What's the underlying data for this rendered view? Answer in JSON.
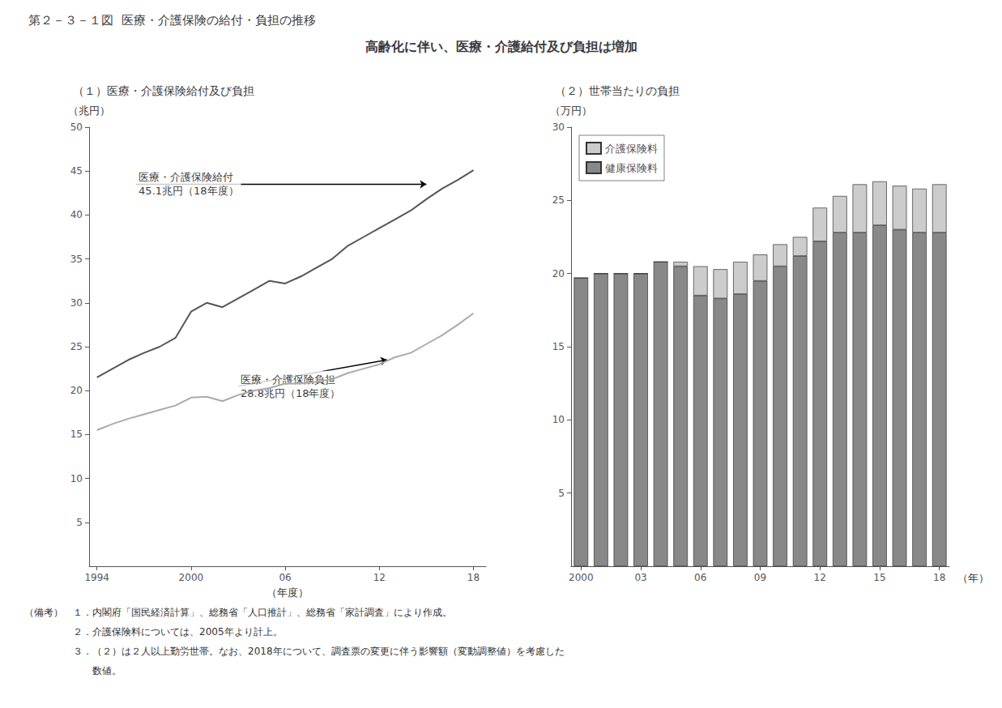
{
  "title": "第２－３－１図  医療・介護保険の給付・負担の推移",
  "subtitle": "高齢化に伴い、医療・介護給付及び負担は増加",
  "notes": [
    "（備考）　１．内閣府「国民経済計算」、総務省「人口推計」、総務省「家計調査」により作成。",
    "　　　　　２．介護保険料については、2005年より計上。",
    "　　　　　３．（２）は２人以上勤労世帯。なお、2018年について、調査票の変更に伴う影響額（変動調整値）を考慮した",
    "　　　　　　　数値。"
  ],
  "chart_data": [
    {
      "type": "line",
      "title": "（１）医療・介護保険給付及び負担",
      "xlabel": "（年度）",
      "ylabel": "（兆円）",
      "x": [
        1994,
        1995,
        1996,
        1997,
        1998,
        1999,
        2000,
        2001,
        2002,
        2003,
        2004,
        2005,
        2006,
        2007,
        2008,
        2009,
        2010,
        2011,
        2012,
        2013,
        2014,
        2015,
        2016,
        2017,
        2018
      ],
      "series": [
        {
          "color": "#555555",
          "values": [
            21.5,
            22.5,
            23.5,
            24.3,
            25.0,
            26.0,
            29.0,
            30.0,
            29.5,
            30.5,
            31.5,
            32.5,
            32.2,
            33.0,
            34.0,
            35.0,
            36.5,
            37.5,
            38.5,
            39.5,
            40.5,
            41.8,
            43.0,
            44.0,
            45.1
          ]
        },
        {
          "color": "#aaaaaa",
          "values": [
            15.5,
            16.2,
            16.8,
            17.3,
            17.8,
            18.3,
            19.2,
            19.3,
            18.8,
            19.5,
            20.0,
            20.3,
            20.8,
            20.8,
            21.0,
            21.3,
            22.0,
            22.5,
            23.0,
            23.8,
            24.3,
            25.3,
            26.3,
            27.5,
            28.8
          ]
        }
      ],
      "xlim": [
        1993.5,
        2018.8
      ],
      "xticks": [
        1994,
        2000,
        {
          "value": 2006,
          "label": "06"
        },
        {
          "value": 2012,
          "label": "12"
        },
        {
          "value": 2018,
          "label": "18"
        }
      ],
      "ylim": [
        0,
        50
      ],
      "yticks": [
        5,
        10,
        15,
        20,
        25,
        30,
        35,
        40,
        45,
        50
      ],
      "grid": false,
      "annotations": [
        {
          "text": "医療・介護保険給付\n45.1兆円（18年度）",
          "x": 2015,
          "y": 43.5,
          "text_x": 1996.5,
          "text_y": 43.5
        },
        {
          "text": "医療・介護保険負担\n28.8兆円（18年度）",
          "x": 2012.5,
          "y": 23.5,
          "text_x": 2003,
          "text_y": 20.5
        }
      ]
    },
    {
      "type": "bar",
      "stacked": true,
      "title": "（２）世帯当たりの負担",
      "xlabel": "（年）",
      "ylabel": "（万円）",
      "categories": [
        "2000",
        null,
        null,
        "03",
        null,
        null,
        "06",
        null,
        null,
        "09",
        null,
        null,
        "12",
        null,
        null,
        "15",
        null,
        null,
        "18"
      ],
      "series": [
        {
          "name": "健康保険料",
          "color": "#888888",
          "values": [
            19.7,
            20.0,
            20.0,
            20.0,
            20.8,
            20.5,
            18.5,
            18.3,
            18.6,
            19.5,
            20.5,
            21.2,
            22.2,
            22.8,
            22.8,
            23.3,
            23.0,
            22.8,
            22.8
          ]
        },
        {
          "name": "介護保険料",
          "color": "#cccccc",
          "values": [
            0.0,
            0.0,
            0.0,
            0.0,
            0.0,
            0.3,
            2.0,
            2.0,
            2.2,
            1.8,
            1.5,
            1.3,
            2.3,
            2.5,
            3.3,
            3.0,
            3.0,
            3.0,
            3.3
          ]
        }
      ],
      "ylim": [
        0,
        30
      ],
      "yticks": [
        5,
        10,
        15,
        20,
        25,
        30
      ],
      "grid": false,
      "legend": "upper left"
    }
  ]
}
